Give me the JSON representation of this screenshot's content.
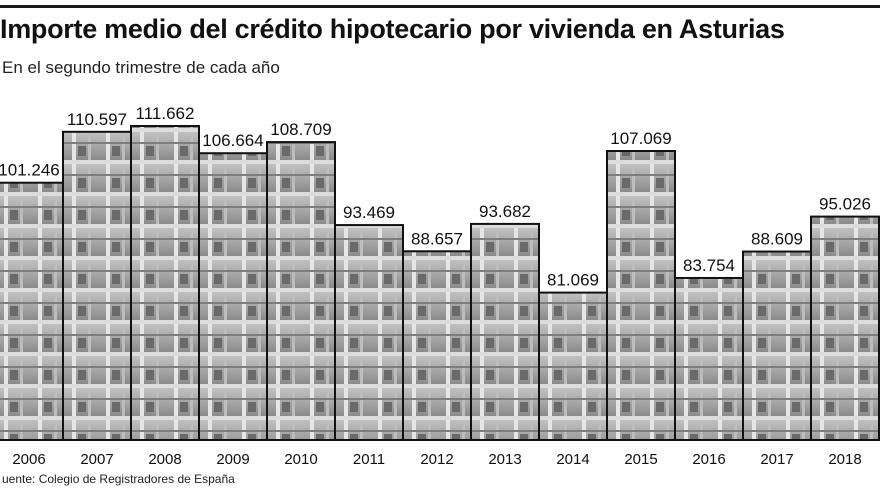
{
  "title": "Importe medio del crédito hipotecario por vivienda en Asturias",
  "subtitle": "En el segundo trimestre de cada año",
  "source": "uente: Colegio de Registradores de España",
  "chart_data": {
    "type": "bar",
    "categories": [
      "2006",
      "2007",
      "2008",
      "2009",
      "2010",
      "2011",
      "2012",
      "2013",
      "2014",
      "2015",
      "2016",
      "2017",
      "2018"
    ],
    "values": [
      101246,
      110597,
      111662,
      106664,
      108709,
      93469,
      88657,
      93682,
      81069,
      107069,
      83754,
      88609,
      95026
    ],
    "value_labels": [
      "101.246",
      "110.597",
      "111.662",
      "106.664",
      "108.709",
      "93.469",
      "88.657",
      "93.682",
      "81.069",
      "107.069",
      "83.754",
      "88.609",
      "95.026"
    ],
    "title": "Importe medio del crédito hipotecario por vivienda en Asturias",
    "xlabel": "",
    "ylabel": "",
    "ylim": [
      54000,
      115000
    ],
    "grid": false,
    "background": "photo of building under construction",
    "colors": {
      "bar_outline": "#111111",
      "photo_fill": "#a9a9a9"
    }
  }
}
